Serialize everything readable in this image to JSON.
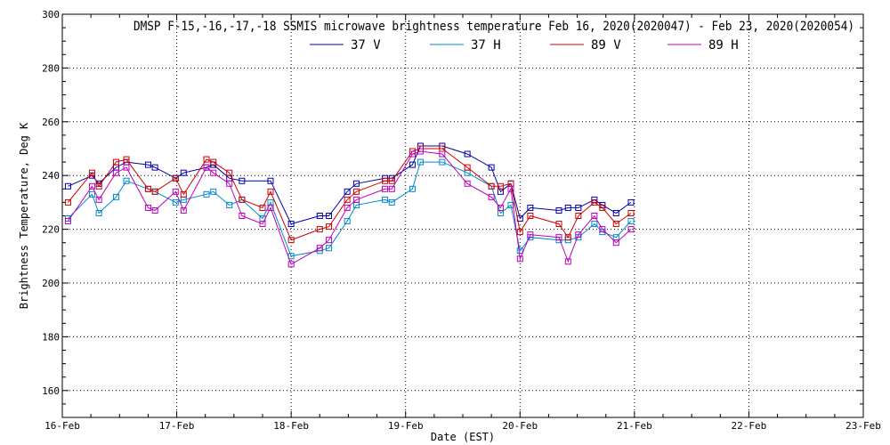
{
  "chart_data": {
    "type": "line",
    "title": "DMSP F-15,-16,-17,-18 SSMIS microwave brightness temperature Feb 16, 2020(2020047) - Feb 23, 2020(2020054)",
    "xlabel": "Date (EST)",
    "ylabel": "Brightness Temperature, Deg K",
    "xlim": [
      0,
      7
    ],
    "ylim": [
      150,
      300
    ],
    "x_ticks": [
      {
        "value": 0,
        "label": "16-Feb"
      },
      {
        "value": 1,
        "label": "17-Feb"
      },
      {
        "value": 2,
        "label": "18-Feb"
      },
      {
        "value": 3,
        "label": "19-Feb"
      },
      {
        "value": 4,
        "label": "20-Feb"
      },
      {
        "value": 5,
        "label": "21-Feb"
      },
      {
        "value": 6,
        "label": "22-Feb"
      },
      {
        "value": 7,
        "label": "23-Feb"
      }
    ],
    "y_ticks": [
      160,
      180,
      200,
      220,
      240,
      260,
      280,
      300
    ],
    "grid": true,
    "legend_position": "top-center",
    "series": [
      {
        "name": "37 V",
        "color": "#0000aa",
        "x": [
          0.05,
          0.26,
          0.32,
          0.47,
          0.56,
          0.75,
          0.81,
          0.99,
          1.06,
          1.26,
          1.32,
          1.46,
          1.57,
          1.82,
          2.0,
          2.25,
          2.33,
          2.49,
          2.57,
          2.82,
          2.88,
          3.06,
          3.13,
          3.32,
          3.54,
          3.75,
          3.83,
          3.92,
          4.0,
          4.09,
          4.34,
          4.42,
          4.51,
          4.65,
          4.72,
          4.84,
          4.97
        ],
        "y": [
          236,
          240,
          237,
          243,
          245,
          244,
          243,
          239,
          241,
          243,
          244,
          239,
          238,
          238,
          222,
          225,
          225,
          234,
          237,
          239,
          239,
          244,
          251,
          251,
          248,
          243,
          234,
          237,
          224,
          228,
          227,
          228,
          228,
          231,
          229,
          226,
          230
        ]
      },
      {
        "name": "37 H",
        "color": "#0088cc",
        "x": [
          0.05,
          0.26,
          0.32,
          0.47,
          0.56,
          0.75,
          0.81,
          0.99,
          1.06,
          1.26,
          1.32,
          1.46,
          1.57,
          1.75,
          1.82,
          2.0,
          2.25,
          2.33,
          2.49,
          2.57,
          2.82,
          2.88,
          3.06,
          3.13,
          3.32,
          3.54,
          3.75,
          3.83,
          3.92,
          4.0,
          4.09,
          4.34,
          4.42,
          4.51,
          4.65,
          4.72,
          4.84,
          4.97
        ],
        "y": [
          224,
          233,
          226,
          232,
          238,
          235,
          234,
          230,
          231,
          233,
          234,
          229,
          231,
          224,
          230,
          210,
          212,
          213,
          223,
          229,
          231,
          230,
          235,
          245,
          245,
          241,
          236,
          226,
          229,
          212,
          217,
          216,
          216,
          217,
          222,
          219,
          217,
          223
        ]
      },
      {
        "name": "89 V",
        "color": "#cc0000",
        "x": [
          0.05,
          0.26,
          0.32,
          0.47,
          0.56,
          0.75,
          0.81,
          0.99,
          1.06,
          1.26,
          1.32,
          1.46,
          1.57,
          1.75,
          1.82,
          2.0,
          2.25,
          2.33,
          2.49,
          2.57,
          2.82,
          2.88,
          3.06,
          3.13,
          3.32,
          3.54,
          3.75,
          3.83,
          3.92,
          4.0,
          4.09,
          4.34,
          4.42,
          4.51,
          4.65,
          4.72,
          4.84,
          4.97
        ],
        "y": [
          230,
          241,
          236,
          245,
          246,
          235,
          234,
          239,
          233,
          246,
          245,
          241,
          231,
          228,
          234,
          216,
          220,
          221,
          231,
          234,
          238,
          238,
          249,
          250,
          250,
          243,
          236,
          236,
          237,
          219,
          225,
          222,
          217,
          225,
          230,
          228,
          222,
          226
        ]
      },
      {
        "name": "89 H",
        "color": "#bb00bb",
        "x": [
          0.05,
          0.26,
          0.32,
          0.47,
          0.56,
          0.75,
          0.81,
          0.99,
          1.06,
          1.26,
          1.32,
          1.46,
          1.57,
          1.75,
          1.82,
          2.0,
          2.25,
          2.33,
          2.49,
          2.57,
          2.82,
          2.88,
          3.06,
          3.13,
          3.32,
          3.54,
          3.75,
          3.83,
          3.92,
          4.0,
          4.09,
          4.34,
          4.42,
          4.51,
          4.65,
          4.72,
          4.84,
          4.97
        ],
        "y": [
          223,
          236,
          231,
          241,
          243,
          228,
          227,
          234,
          227,
          243,
          241,
          237,
          225,
          222,
          228,
          207,
          213,
          216,
          228,
          231,
          235,
          235,
          248,
          249,
          248,
          237,
          232,
          228,
          235,
          209,
          218,
          217,
          208,
          218,
          225,
          220,
          215,
          220
        ]
      }
    ]
  }
}
